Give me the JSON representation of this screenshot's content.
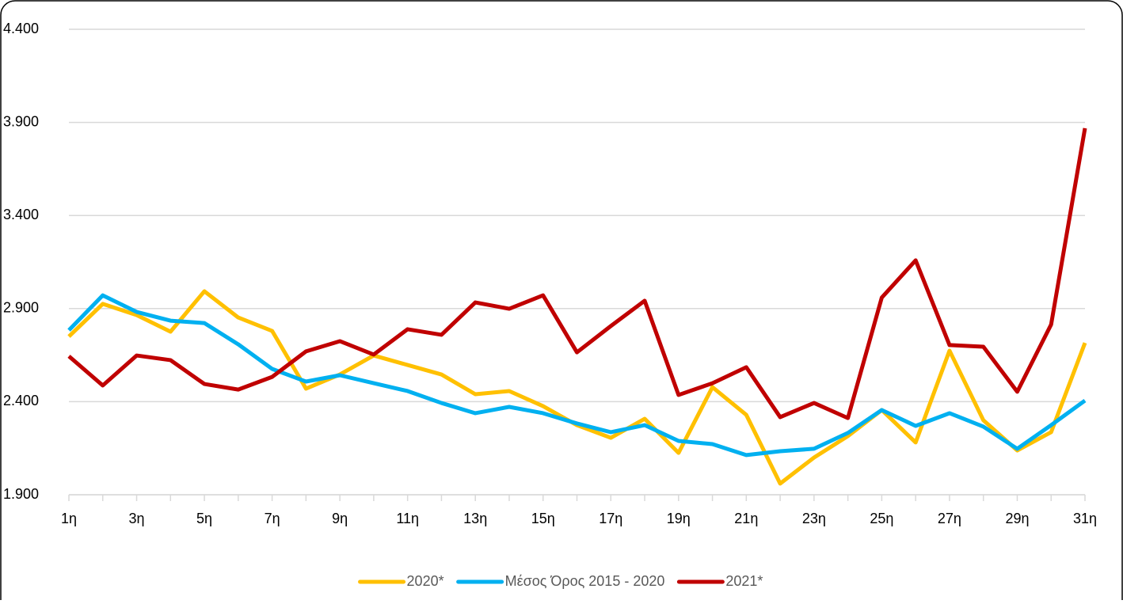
{
  "chart_data": {
    "type": "line",
    "categories": [
      "1η",
      null,
      "3η",
      null,
      "5η",
      null,
      "7η",
      null,
      "9η",
      null,
      "11η",
      null,
      "13η",
      null,
      "15η",
      null,
      "17η",
      null,
      "19η",
      null,
      "21η",
      null,
      "23η",
      null,
      "25η",
      null,
      "27η",
      null,
      "29η",
      null,
      "31η"
    ],
    "series": [
      {
        "name": "2020*",
        "color": "#FFC000",
        "values": [
          2750,
          2925,
          2865,
          2776,
          2993,
          2852,
          2780,
          2470,
          2546,
          2648,
          2597,
          2546,
          2440,
          2457,
          2376,
          2274,
          2206,
          2308,
          2125,
          2478,
          2329,
          1960,
          2100,
          2215,
          2355,
          2181,
          2674,
          2300,
          2138,
          2236,
          2716
        ]
      },
      {
        "name": "Μέσος Όρος 2015 - 2020",
        "color": "#00B0F0",
        "values": [
          2784,
          2971,
          2882,
          2835,
          2822,
          2708,
          2576,
          2508,
          2542,
          2499,
          2457,
          2393,
          2338,
          2372,
          2338,
          2283,
          2236,
          2274,
          2189,
          2172,
          2113,
          2134,
          2147,
          2232,
          2355,
          2270,
          2338,
          2266,
          2147,
          2274,
          2406
        ]
      },
      {
        "name": "2021*",
        "color": "#C00000",
        "values": [
          2644,
          2487,
          2648,
          2623,
          2495,
          2465,
          2533,
          2670,
          2725,
          2653,
          2789,
          2759,
          2933,
          2899,
          2971,
          2665,
          2806,
          2942,
          2436,
          2499,
          2585,
          2317,
          2393,
          2312,
          2959,
          3159,
          2704,
          2695,
          2453,
          2814,
          3869
        ]
      }
    ],
    "ylim": [
      1900,
      4400
    ],
    "yticks": [
      {
        "value": 1900,
        "label": "1.900"
      },
      {
        "value": 2400,
        "label": "2.400"
      },
      {
        "value": 2900,
        "label": "2.900"
      },
      {
        "value": 3400,
        "label": "3.400"
      },
      {
        "value": 3900,
        "label": "3.900"
      },
      {
        "value": 4400,
        "label": "4.400"
      }
    ],
    "grid": true,
    "legend": "bottom"
  }
}
